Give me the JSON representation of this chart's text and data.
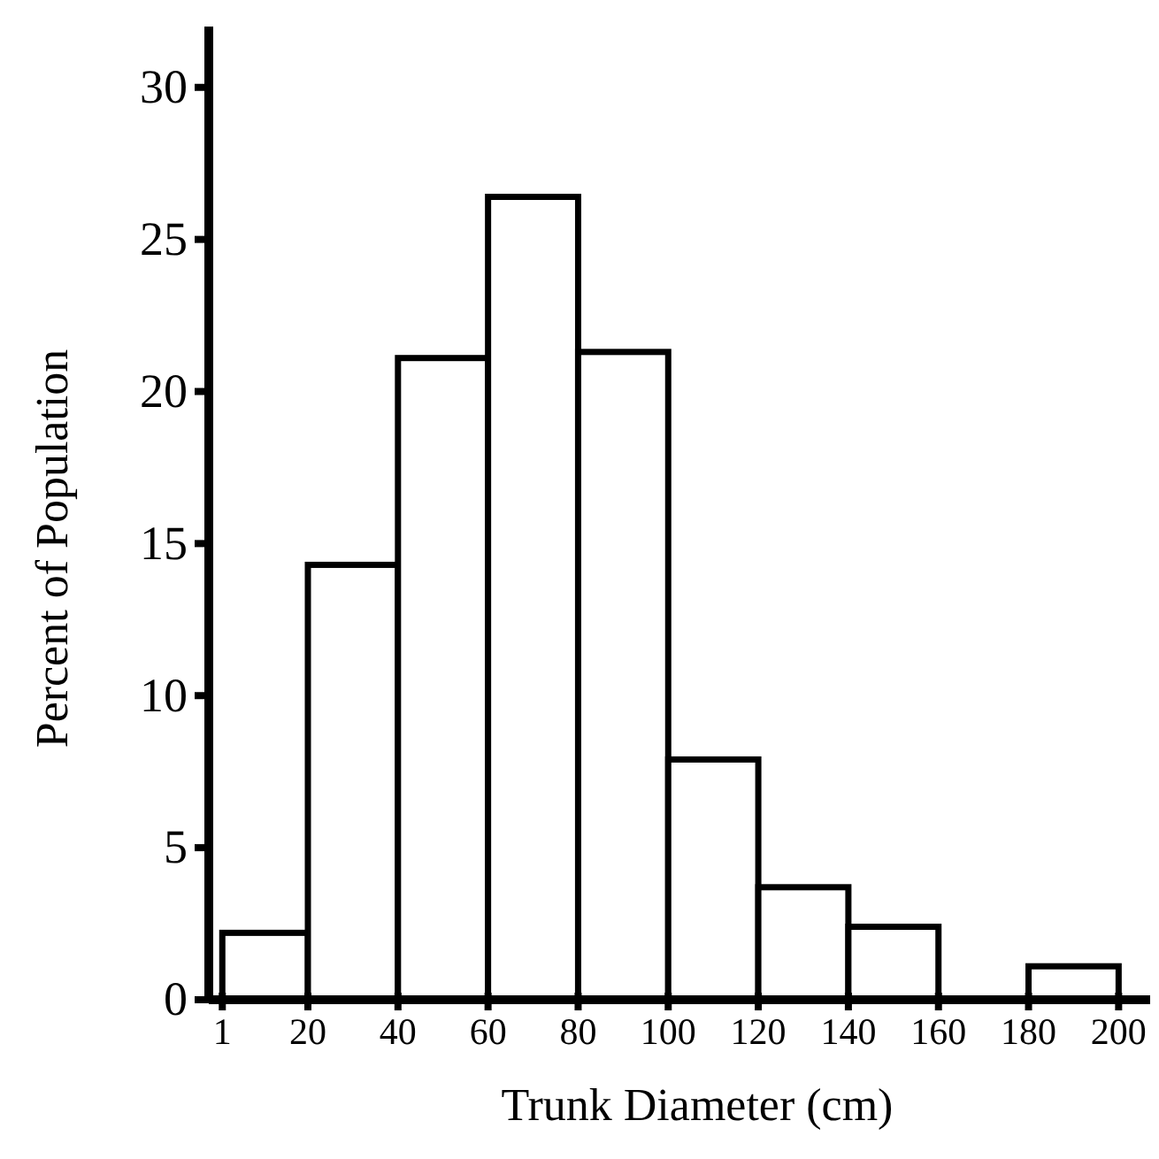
{
  "chart_data": {
    "type": "histogram",
    "xlabel": "Trunk Diameter (cm)",
    "ylabel": "Percent of Population",
    "bins": [
      1,
      20,
      40,
      60,
      80,
      100,
      120,
      140,
      160,
      180,
      200
    ],
    "values": [
      2.2,
      14.3,
      21.1,
      26.4,
      21.3,
      7.9,
      3.7,
      2.4,
      0,
      1.1
    ],
    "color": "#ffffff",
    "xlim": [
      -2,
      207
    ],
    "xticks": [
      1,
      20,
      40,
      60,
      80,
      100,
      120,
      140,
      160,
      180,
      200
    ],
    "ylim": [
      0,
      32
    ],
    "yticks": [
      0,
      5,
      10,
      15,
      20,
      25,
      30
    ],
    "grid": false
  }
}
